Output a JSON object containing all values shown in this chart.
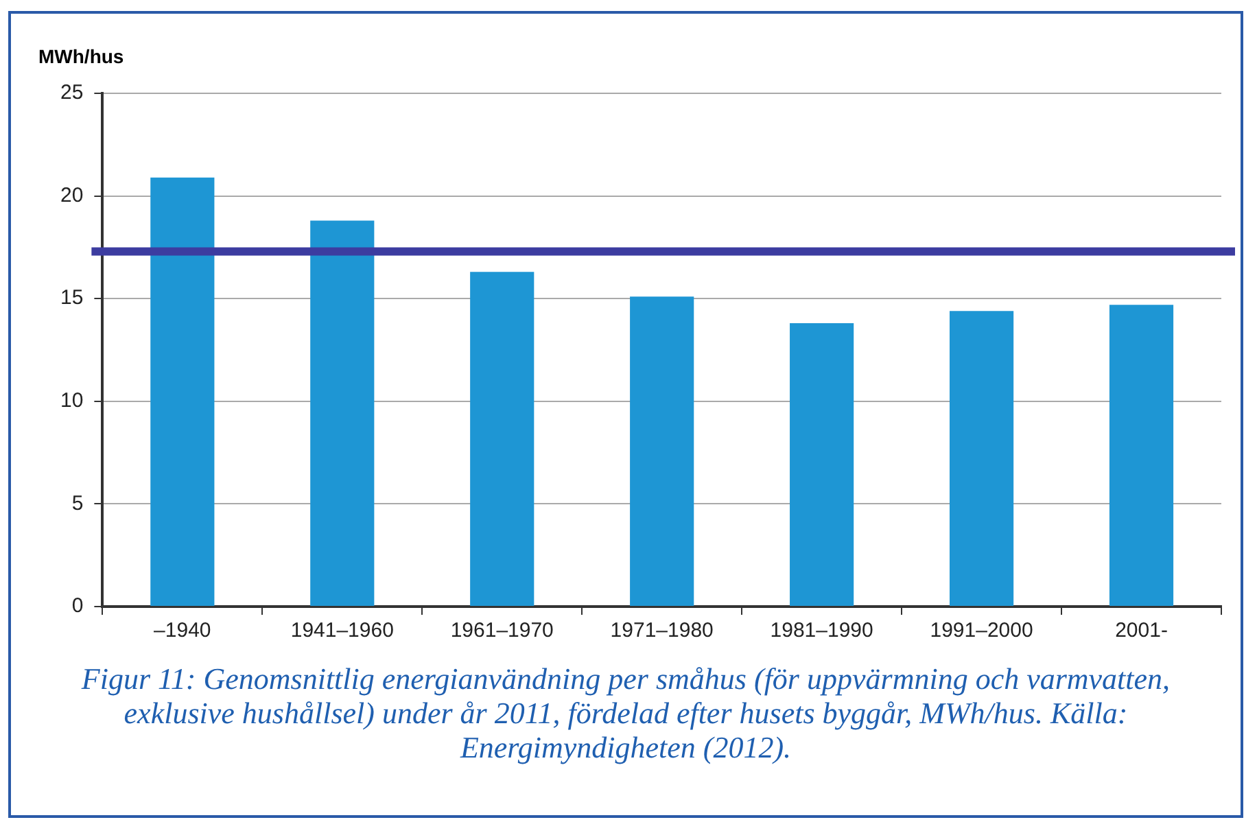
{
  "chart_data": {
    "type": "bar",
    "ylabel": "MWh/hus",
    "categories": [
      "–1940",
      "1941–1960",
      "1961–1970",
      "1971–1980",
      "1981–1990",
      "1991–2000",
      "2001-"
    ],
    "values": [
      20.9,
      18.8,
      16.3,
      15.1,
      13.8,
      14.4,
      14.7
    ],
    "color": "#1e96d4",
    "ylim": [
      0,
      25
    ],
    "yticks": [
      0,
      5,
      10,
      15,
      20,
      25
    ],
    "grid": "y",
    "ref_lines": [
      {
        "axis": "y",
        "value": 17.3,
        "color": "#3c3ca0"
      }
    ],
    "annotations": [
      "Figur 11: Genomsnittlig energianvändning per småhus (för uppvärmning och varmvatten, exklusive hushållsel) under år 2011, fördelad efter husets byggår, MWh/hus. Källa: Energimyndigheten (2012)."
    ]
  }
}
